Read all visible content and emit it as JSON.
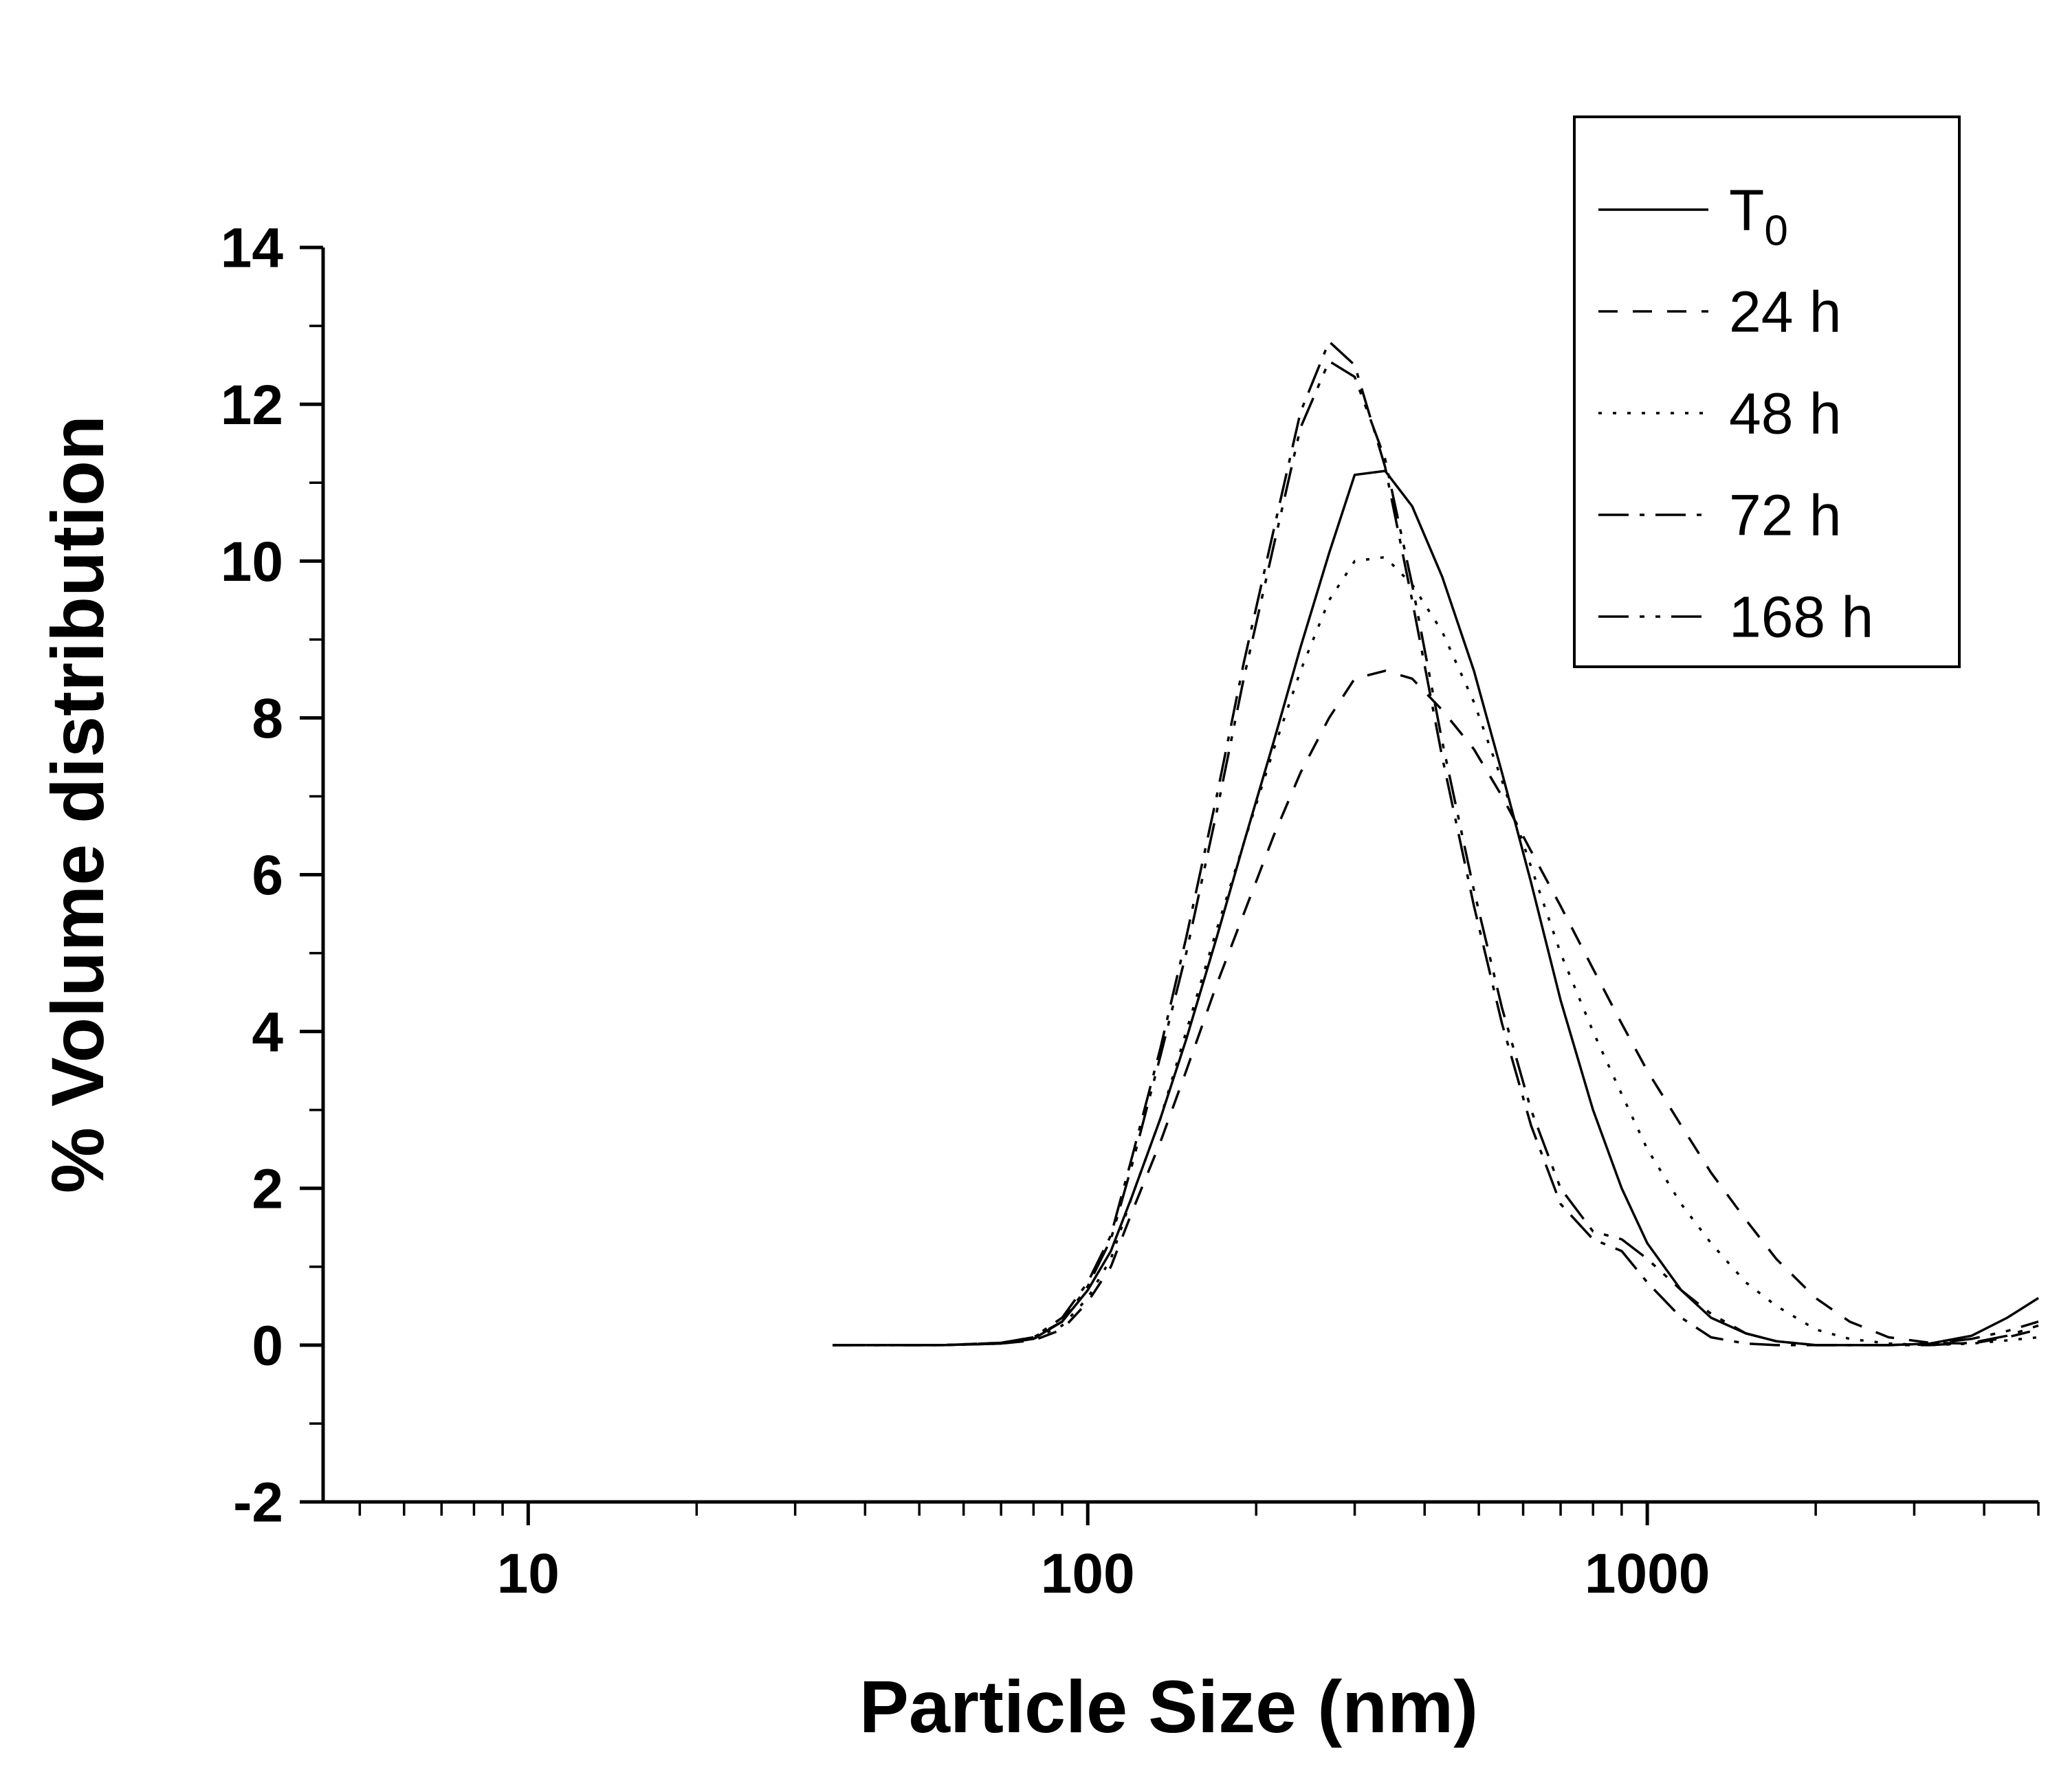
{
  "chart_data": {
    "type": "line",
    "title": "",
    "xlabel": "Particle Size (nm)",
    "ylabel": "% Volume distribution",
    "x_scale": "log",
    "grid": false,
    "legend_position": "top-right",
    "xlim": [
      4.3,
      5000
    ],
    "ylim": [
      -2,
      14
    ],
    "x_major_ticks": [
      10,
      100,
      1000
    ],
    "y_major_ticks": [
      -2,
      0,
      2,
      4,
      6,
      8,
      10,
      12,
      14
    ],
    "line_color": "#000000",
    "x": [
      35,
      45,
      55,
      70,
      80,
      90,
      100,
      110,
      120,
      135,
      150,
      170,
      190,
      215,
      240,
      270,
      300,
      340,
      380,
      430,
      490,
      550,
      620,
      700,
      800,
      900,
      1000,
      1150,
      1300,
      1500,
      1700,
      2000,
      2300,
      2700,
      3200,
      3800,
      4400,
      5000
    ],
    "series": [
      {
        "name": "T0",
        "legend": "T",
        "legend_sub": "0",
        "dash": "solid",
        "values": [
          0,
          0,
          0,
          0.02,
          0.08,
          0.3,
          0.7,
          1.2,
          1.9,
          2.9,
          3.9,
          5.2,
          6.4,
          7.7,
          8.9,
          10.1,
          11.1,
          11.15,
          10.7,
          9.8,
          8.6,
          7.3,
          5.9,
          4.4,
          3.0,
          2.0,
          1.3,
          0.7,
          0.35,
          0.15,
          0.05,
          0,
          0,
          0,
          0.02,
          0.12,
          0.35,
          0.6
        ]
      },
      {
        "name": "24 h",
        "legend": "24 h",
        "dash": "dashed",
        "values": [
          0,
          0,
          0,
          0.02,
          0.06,
          0.2,
          0.55,
          1.0,
          1.7,
          2.6,
          3.5,
          4.6,
          5.5,
          6.5,
          7.3,
          8.0,
          8.5,
          8.6,
          8.5,
          8.1,
          7.6,
          7.0,
          6.3,
          5.6,
          4.8,
          4.1,
          3.5,
          2.8,
          2.2,
          1.6,
          1.1,
          0.6,
          0.3,
          0.1,
          0.03,
          0.02,
          0.1,
          0.2
        ]
      },
      {
        "name": "48 h",
        "legend": "48 h",
        "dash": "dotted",
        "values": [
          0,
          0,
          0,
          0.02,
          0.08,
          0.25,
          0.6,
          1.1,
          1.9,
          2.9,
          4.0,
          5.3,
          6.4,
          7.6,
          8.6,
          9.5,
          10.0,
          10.05,
          9.7,
          9.1,
          8.2,
          7.2,
          6.1,
          5.0,
          4.0,
          3.2,
          2.5,
          1.8,
          1.3,
          0.8,
          0.5,
          0.2,
          0.08,
          0.02,
          0,
          0.02,
          0.06,
          0.1
        ]
      },
      {
        "name": "72 h",
        "legend": "72 h",
        "dash": "dashdot",
        "values": [
          0,
          0,
          0,
          0.03,
          0.1,
          0.35,
          0.8,
          1.4,
          2.4,
          3.8,
          5.2,
          7.0,
          8.7,
          10.4,
          11.9,
          12.8,
          12.5,
          11.2,
          9.5,
          7.5,
          5.6,
          4.1,
          2.8,
          1.8,
          1.35,
          1.2,
          0.8,
          0.35,
          0.1,
          0.02,
          0,
          0,
          0,
          0,
          0,
          0.03,
          0.12,
          0.25
        ]
      },
      {
        "name": "168 h",
        "legend": "168 h",
        "dash": "dashdotdot",
        "values": [
          0,
          0,
          0,
          0.03,
          0.1,
          0.3,
          0.75,
          1.35,
          2.3,
          3.7,
          5.0,
          6.8,
          8.5,
          10.2,
          11.7,
          12.55,
          12.35,
          11.3,
          9.7,
          7.7,
          5.8,
          4.3,
          3.0,
          2.0,
          1.45,
          1.35,
          1.1,
          0.7,
          0.4,
          0.15,
          0.05,
          0,
          0,
          0,
          0.02,
          0.08,
          0.18,
          0.3
        ]
      }
    ]
  }
}
